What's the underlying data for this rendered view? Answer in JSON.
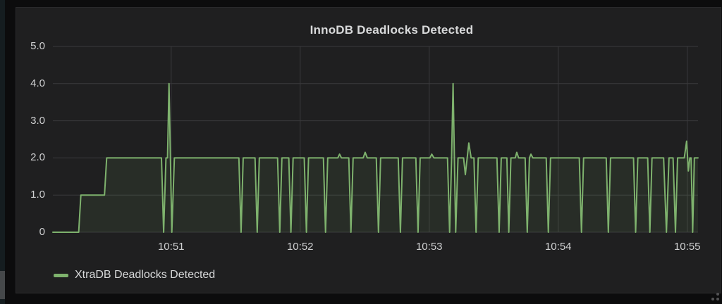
{
  "panel": {
    "title": "InnoDB Deadlocks Detected",
    "legend": {
      "label": "XtraDB Deadlocks Detected",
      "color": "#7eb26d"
    }
  },
  "colors": {
    "outer_background": "#0c0c0d",
    "panel_background": "#1f1f20",
    "grid": "#3a3a3c",
    "text": "#d8d9da",
    "series_line": "#7eb26d",
    "series_fill": "rgba(126,178,109,0.10)"
  },
  "chart_data": {
    "type": "area",
    "title": "InnoDB Deadlocks Detected",
    "x_unit": "seconds after 10:50:00",
    "xlim": [
      5,
      305
    ],
    "ylim": [
      0,
      5
    ],
    "grid": true,
    "legend_position": "bottom-left",
    "x_ticks": [
      {
        "t": 60,
        "label": "10:51"
      },
      {
        "t": 120,
        "label": "10:52"
      },
      {
        "t": 180,
        "label": "10:53"
      },
      {
        "t": 240,
        "label": "10:54"
      },
      {
        "t": 300,
        "label": "10:55"
      }
    ],
    "y_ticks": [
      {
        "v": 0,
        "label": "0"
      },
      {
        "v": 1,
        "label": "1.0"
      },
      {
        "v": 2,
        "label": "2.0"
      },
      {
        "v": 3,
        "label": "3.0"
      },
      {
        "v": 4,
        "label": "4.0"
      },
      {
        "v": 5,
        "label": "5.0"
      }
    ],
    "series": [
      {
        "name": "XtraDB Deadlocks Detected",
        "color": "#7eb26d",
        "points": [
          [
            5,
            0
          ],
          [
            17,
            0
          ],
          [
            18,
            1
          ],
          [
            29,
            1
          ],
          [
            30,
            2
          ],
          [
            55.5,
            2
          ],
          [
            56.5,
            0
          ],
          [
            57.6,
            2
          ],
          [
            58.3,
            2
          ],
          [
            59,
            4
          ],
          [
            60.3,
            0
          ],
          [
            61.5,
            2
          ],
          [
            91.5,
            2
          ],
          [
            92.5,
            0
          ],
          [
            93.5,
            2
          ],
          [
            99,
            2
          ],
          [
            100,
            0
          ],
          [
            101,
            2
          ],
          [
            109.5,
            2
          ],
          [
            110.5,
            0
          ],
          [
            111.5,
            2
          ],
          [
            114.7,
            2
          ],
          [
            115.7,
            0
          ],
          [
            116.7,
            2
          ],
          [
            121.9,
            2
          ],
          [
            122.9,
            0
          ],
          [
            123.9,
            2
          ],
          [
            130.8,
            2
          ],
          [
            131.8,
            0
          ],
          [
            132.8,
            2
          ],
          [
            137.5,
            2
          ],
          [
            138.3,
            2.1
          ],
          [
            139.2,
            2
          ],
          [
            142.6,
            2
          ],
          [
            143.6,
            0
          ],
          [
            144.6,
            2
          ],
          [
            149.3,
            2
          ],
          [
            150.2,
            2.15
          ],
          [
            151.2,
            2
          ],
          [
            155.4,
            2
          ],
          [
            156.4,
            0
          ],
          [
            157.4,
            2
          ],
          [
            165.6,
            2
          ],
          [
            166.6,
            0
          ],
          [
            167.6,
            2
          ],
          [
            173.8,
            2
          ],
          [
            174.8,
            0
          ],
          [
            175.8,
            2
          ],
          [
            180.3,
            2
          ],
          [
            181.2,
            2.1
          ],
          [
            182.2,
            2
          ],
          [
            188.5,
            2
          ],
          [
            189.5,
            0
          ],
          [
            190.4,
            2
          ],
          [
            191.1,
            4
          ],
          [
            192.3,
            0
          ],
          [
            193.4,
            2
          ],
          [
            196,
            2
          ],
          [
            196.8,
            1.55
          ],
          [
            198.4,
            2.4
          ],
          [
            199.5,
            2
          ],
          [
            200.8,
            2
          ],
          [
            201.8,
            0
          ],
          [
            202.8,
            2
          ],
          [
            211.5,
            2
          ],
          [
            212.5,
            0
          ],
          [
            213.5,
            2
          ],
          [
            216.1,
            2
          ],
          [
            217,
            0
          ],
          [
            218,
            2
          ],
          [
            220,
            2
          ],
          [
            220.7,
            2.15
          ],
          [
            221.6,
            2
          ],
          [
            224.6,
            2
          ],
          [
            225.6,
            0
          ],
          [
            226.6,
            2
          ],
          [
            227.3,
            2.1
          ],
          [
            228.2,
            2
          ],
          [
            234.4,
            2
          ],
          [
            235.4,
            0
          ],
          [
            236.4,
            2
          ],
          [
            249.8,
            2
          ],
          [
            250.8,
            0
          ],
          [
            251.8,
            2
          ],
          [
            262.3,
            2
          ],
          [
            263.3,
            0
          ],
          [
            264.3,
            2
          ],
          [
            275,
            2
          ],
          [
            276,
            0
          ],
          [
            277,
            2
          ],
          [
            281.6,
            2
          ],
          [
            282.6,
            0
          ],
          [
            283.6,
            2
          ],
          [
            289,
            2
          ],
          [
            290.3,
            0
          ],
          [
            291.5,
            2
          ],
          [
            293.4,
            2
          ],
          [
            294.5,
            0
          ],
          [
            295.5,
            2
          ],
          [
            298.6,
            2
          ],
          [
            299.7,
            2.45
          ],
          [
            300.5,
            1.65
          ],
          [
            301.2,
            2
          ],
          [
            301.8,
            2
          ],
          [
            302.5,
            0
          ],
          [
            303.3,
            2
          ],
          [
            305,
            2
          ]
        ]
      }
    ]
  }
}
